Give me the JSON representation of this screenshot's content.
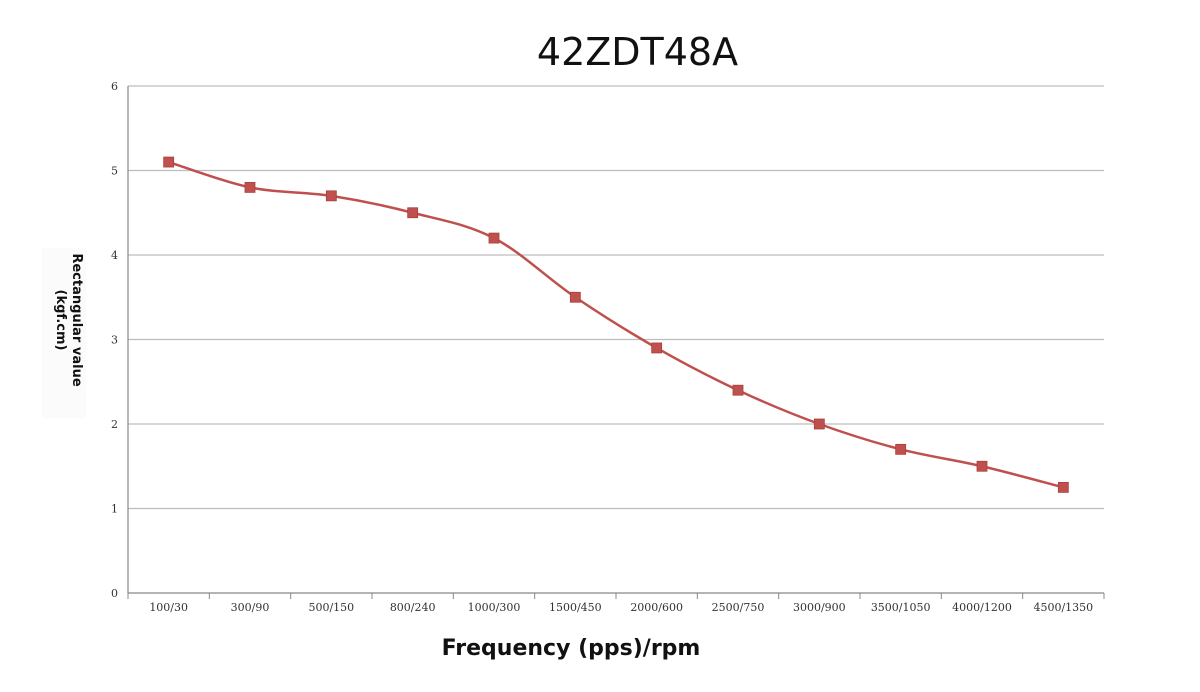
{
  "chart_data": {
    "type": "line",
    "title": "42ZDT48A",
    "xlabel": "Frequency (pps)/rpm",
    "ylabel_lines": [
      "Rectangular value",
      "(kgf.cm)"
    ],
    "categories": [
      "100/30",
      "300/90",
      "500/150",
      "800/240",
      "1000/300",
      "1500/450",
      "2000/600",
      "2500/750",
      "3000/900",
      "3500/1050",
      "4000/1200",
      "4500/1350"
    ],
    "series": [
      {
        "values": [
          5.1,
          4.8,
          4.7,
          4.5,
          4.2,
          3.5,
          2.9,
          2.4,
          2.0,
          1.7,
          1.5,
          1.25
        ]
      }
    ],
    "ylim": [
      0,
      6
    ],
    "yticks": [
      "0",
      "1",
      "2",
      "3",
      "4",
      "5",
      "6"
    ],
    "grid": true,
    "line_color": "#c0504d",
    "marker": "square",
    "smooth": true
  }
}
